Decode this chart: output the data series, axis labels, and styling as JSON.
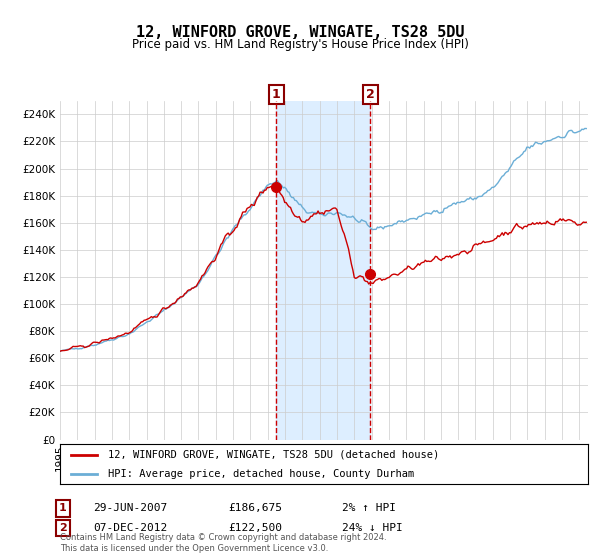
{
  "title": "12, WINFORD GROVE, WINGATE, TS28 5DU",
  "subtitle": "Price paid vs. HM Land Registry's House Price Index (HPI)",
  "legend_line1": "12, WINFORD GROVE, WINGATE, TS28 5DU (detached house)",
  "legend_line2": "HPI: Average price, detached house, County Durham",
  "annotation1_date": "29-JUN-2007",
  "annotation1_price": "£186,675",
  "annotation1_hpi": "2% ↑ HPI",
  "annotation2_date": "07-DEC-2012",
  "annotation2_price": "£122,500",
  "annotation2_hpi": "24% ↓ HPI",
  "sale1_x": 2007.49,
  "sale1_y": 186675,
  "sale2_x": 2012.93,
  "sale2_y": 122500,
  "shade_x1": 2007.49,
  "shade_x2": 2012.93,
  "footer": "Contains HM Land Registry data © Crown copyright and database right 2024.\nThis data is licensed under the Open Government Licence v3.0.",
  "hpi_color": "#6baed6",
  "property_color": "#cc0000",
  "background_color": "#ffffff",
  "grid_color": "#cccccc",
  "shade_color": "#ddeeff",
  "ylim": [
    0,
    250000
  ],
  "xlim": [
    1995,
    2025.5
  ],
  "yticks": [
    0,
    20000,
    40000,
    60000,
    80000,
    100000,
    120000,
    140000,
    160000,
    180000,
    200000,
    220000,
    240000
  ],
  "base_years": [
    1995,
    1997,
    1999,
    2001,
    2003,
    2005,
    2007,
    2007.5,
    2008,
    2009,
    2010,
    2011,
    2012,
    2013,
    2014,
    2015,
    2016,
    2017,
    2018,
    2019,
    2020,
    2021,
    2022,
    2023,
    2024,
    2025
  ],
  "hpi_base": [
    65000,
    70000,
    78000,
    95000,
    115000,
    155000,
    188000,
    191000,
    185000,
    170000,
    165000,
    168000,
    163000,
    155000,
    158000,
    162000,
    165000,
    170000,
    175000,
    178000,
    185000,
    200000,
    215000,
    220000,
    225000,
    228000
  ],
  "prop_base": [
    65000,
    71000,
    79000,
    96000,
    116000,
    156000,
    188000,
    186675,
    176000,
    162000,
    168000,
    170000,
    122500,
    115000,
    120000,
    125000,
    130000,
    133000,
    138000,
    142000,
    148000,
    155000,
    158000,
    160000,
    162000,
    160000
  ]
}
